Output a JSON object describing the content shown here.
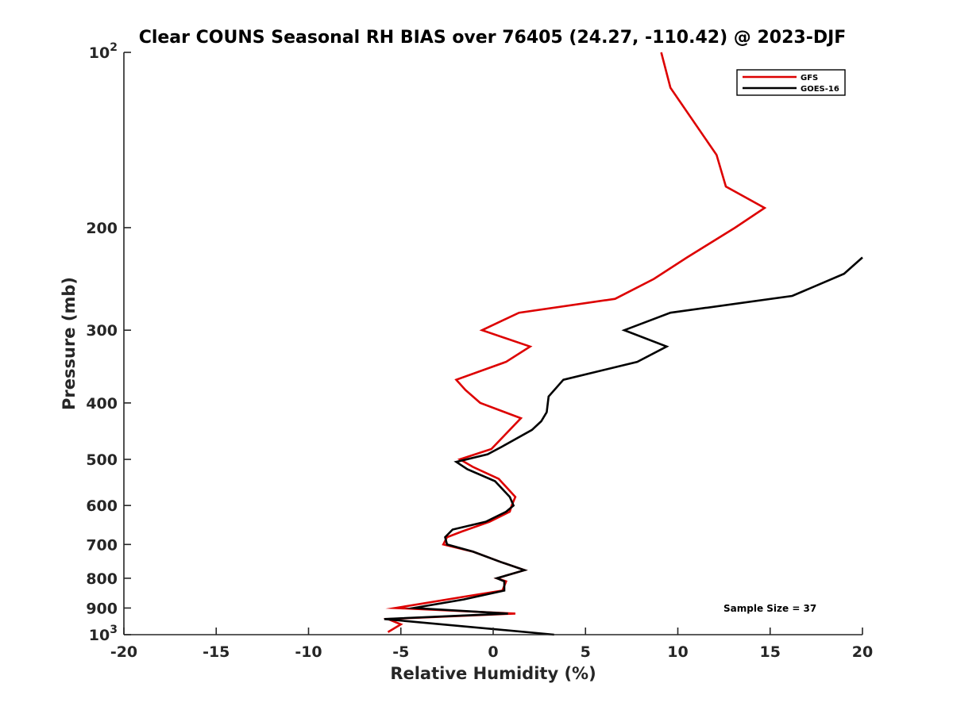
{
  "chart_data": {
    "type": "line",
    "title": "Clear COUNS Seasonal RH BIAS over 76405 (24.27, -110.42) @ 2023-DJF",
    "xlabel": "Relative Humidity (%)",
    "ylabel": "Pressure (mb)",
    "xlim": [
      -20,
      20
    ],
    "ylim": [
      100,
      1000
    ],
    "yscale": "log",
    "y_reversed": true,
    "xticks": [
      -20,
      -15,
      -10,
      -5,
      0,
      5,
      10,
      15,
      20
    ],
    "xtick_labels": [
      "-20",
      "-15",
      "-10",
      "-5",
      "0",
      "5",
      "10",
      "15",
      "20"
    ],
    "yticks": [
      100,
      200,
      300,
      400,
      500,
      600,
      700,
      800,
      900,
      1000
    ],
    "ytick_labels": [
      {
        "base": "10",
        "exp": "2"
      },
      {
        "base": "200",
        "exp": ""
      },
      {
        "base": "300",
        "exp": ""
      },
      {
        "base": "400",
        "exp": ""
      },
      {
        "base": "500",
        "exp": ""
      },
      {
        "base": "600",
        "exp": ""
      },
      {
        "base": "700",
        "exp": ""
      },
      {
        "base": "800",
        "exp": ""
      },
      {
        "base": "900",
        "exp": ""
      },
      {
        "base": "10",
        "exp": "3"
      }
    ],
    "legend_position": "top-right",
    "annotation": "Sample Size = 37",
    "series": [
      {
        "name": "GFS",
        "color": "#dd0000",
        "points": [
          [
            9.1,
            100
          ],
          [
            9.6,
            115
          ],
          [
            12.1,
            150
          ],
          [
            12.6,
            170
          ],
          [
            14.7,
            185
          ],
          [
            13.1,
            200
          ],
          [
            10.5,
            225
          ],
          [
            8.7,
            245
          ],
          [
            6.6,
            265
          ],
          [
            1.4,
            280
          ],
          [
            -0.6,
            300
          ],
          [
            2.0,
            320
          ],
          [
            0.7,
            340
          ],
          [
            -2.0,
            365
          ],
          [
            -1.5,
            380
          ],
          [
            -0.7,
            400
          ],
          [
            1.5,
            425
          ],
          [
            -0.1,
            480
          ],
          [
            -1.8,
            500
          ],
          [
            -1.1,
            515
          ],
          [
            0.3,
            540
          ],
          [
            1.2,
            580
          ],
          [
            1.0,
            600
          ],
          [
            0.9,
            615
          ],
          [
            -0.2,
            640
          ],
          [
            -1.7,
            665
          ],
          [
            -2.5,
            680
          ],
          [
            -2.7,
            700
          ],
          [
            -1.1,
            720
          ],
          [
            0.4,
            750
          ],
          [
            1.7,
            775
          ],
          [
            0.2,
            800
          ],
          [
            0.7,
            810
          ],
          [
            0.5,
            840
          ],
          [
            -1.5,
            860
          ],
          [
            -5.3,
            900
          ],
          [
            1.2,
            920
          ],
          [
            -5.7,
            940
          ],
          [
            -5.0,
            960
          ],
          [
            -5.7,
            990
          ]
        ]
      },
      {
        "name": "GOES-16",
        "color": "#000000",
        "points": [
          [
            20.0,
            225
          ],
          [
            19.0,
            240
          ],
          [
            16.2,
            262
          ],
          [
            9.6,
            280
          ],
          [
            7.1,
            300
          ],
          [
            9.4,
            320
          ],
          [
            7.8,
            340
          ],
          [
            3.8,
            365
          ],
          [
            3.0,
            390
          ],
          [
            2.9,
            415
          ],
          [
            2.6,
            430
          ],
          [
            2.1,
            445
          ],
          [
            0.5,
            475
          ],
          [
            -0.3,
            490
          ],
          [
            -2.0,
            505
          ],
          [
            -1.4,
            520
          ],
          [
            0.1,
            545
          ],
          [
            0.9,
            580
          ],
          [
            1.1,
            600
          ],
          [
            0.7,
            615
          ],
          [
            -0.4,
            640
          ],
          [
            -2.2,
            660
          ],
          [
            -2.6,
            680
          ],
          [
            -2.5,
            700
          ],
          [
            -1.1,
            720
          ],
          [
            0.4,
            750
          ],
          [
            1.7,
            775
          ],
          [
            0.2,
            800
          ],
          [
            0.6,
            810
          ],
          [
            0.6,
            840
          ],
          [
            -1.6,
            870
          ],
          [
            -4.3,
            900
          ],
          [
            0.8,
            920
          ],
          [
            -5.9,
            940
          ],
          [
            3.3,
            1000
          ]
        ]
      }
    ]
  }
}
